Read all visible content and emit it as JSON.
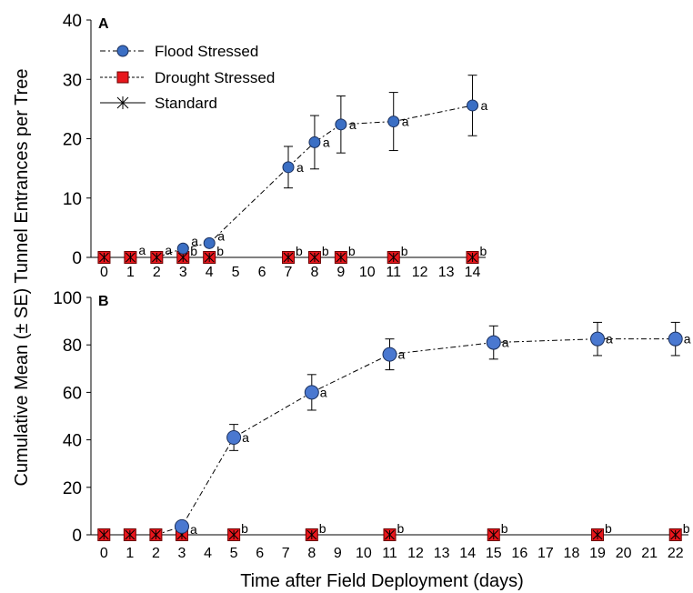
{
  "chart_data": [
    {
      "type": "line",
      "panel_label": "A",
      "x": [
        0,
        1,
        2,
        3,
        4,
        7,
        8,
        9,
        11,
        14
      ],
      "x_tick_labels": [
        "0",
        "1",
        "2",
        "3",
        "4",
        "5",
        "6",
        "7",
        "8",
        "9",
        "10",
        "11",
        "12",
        "13",
        "14"
      ],
      "ylim": [
        0,
        40
      ],
      "y_ticks": [
        0,
        10,
        20,
        30,
        40
      ],
      "series": [
        {
          "name": "Flood Stressed",
          "color": "#3b6fc4",
          "marker": "circle",
          "line_style": "dash-dot",
          "values": [
            0,
            0,
            0,
            1.5,
            2.4,
            15.2,
            19.4,
            22.4,
            22.9,
            25.6
          ],
          "error": [
            0,
            0,
            0,
            0,
            0,
            3.5,
            4.5,
            4.8,
            4.9,
            5.1
          ],
          "sig_letters": [
            "",
            "a",
            "a",
            "a",
            "a",
            "a",
            "a",
            "a",
            "a",
            "a"
          ]
        },
        {
          "name": "Drought Stressed",
          "color": "#e8161c",
          "marker": "square",
          "line_style": "dashed",
          "values": [
            0,
            0,
            0,
            0,
            0,
            0,
            0,
            0,
            0,
            0
          ],
          "sig_letters": [
            "",
            "",
            "",
            "b",
            "b",
            "b",
            "b",
            "b",
            "b",
            "b"
          ]
        },
        {
          "name": "Standard",
          "color": "#000000",
          "marker": "asterisk",
          "line_style": "solid",
          "values": [
            0,
            0,
            0,
            0,
            0,
            0,
            0,
            0,
            0,
            0
          ]
        }
      ],
      "legend": {
        "position": "top-left"
      }
    },
    {
      "type": "line",
      "panel_label": "B",
      "x": [
        0,
        1,
        2,
        3,
        5,
        8,
        11,
        15,
        19,
        22
      ],
      "x_tick_labels": [
        "0",
        "1",
        "2",
        "3",
        "4",
        "5",
        "6",
        "7",
        "8",
        "9",
        "10",
        "11",
        "12",
        "13",
        "14",
        "15",
        "16",
        "17",
        "18",
        "19",
        "20",
        "21",
        "22"
      ],
      "ylim": [
        0,
        100
      ],
      "y_ticks": [
        0,
        20,
        40,
        60,
        80,
        100
      ],
      "series": [
        {
          "name": "Flood Stressed",
          "color": "#4a78d0",
          "marker": "circle",
          "line_style": "dash-dot",
          "values": [
            0,
            0,
            0,
            3.5,
            41,
            60,
            76,
            81,
            82.5,
            82.5
          ],
          "error": [
            0,
            0,
            0,
            0,
            5.5,
            7.5,
            6.5,
            7,
            7,
            7
          ],
          "sig_letters": [
            "",
            "",
            "",
            "a",
            "a",
            "a",
            "a",
            "a",
            "a",
            "a"
          ]
        },
        {
          "name": "Drought Stressed",
          "color": "#e8161c",
          "marker": "square",
          "line_style": "dashed",
          "values": [
            0,
            0,
            0,
            0,
            0,
            0,
            0,
            0,
            0,
            0
          ],
          "sig_letters": [
            "",
            "",
            "",
            "",
            "b",
            "b",
            "b",
            "b",
            "b",
            "b"
          ]
        },
        {
          "name": "Standard",
          "color": "#000000",
          "marker": "asterisk",
          "line_style": "solid",
          "values": [
            0,
            0,
            0,
            0,
            0,
            0,
            0,
            0,
            0,
            0
          ]
        }
      ]
    }
  ],
  "figure": {
    "ylabel": "Cumulative Mean (± SE) Tunnel Entrances per Tree",
    "xlabel": "Time after Field Deployment (days)"
  }
}
